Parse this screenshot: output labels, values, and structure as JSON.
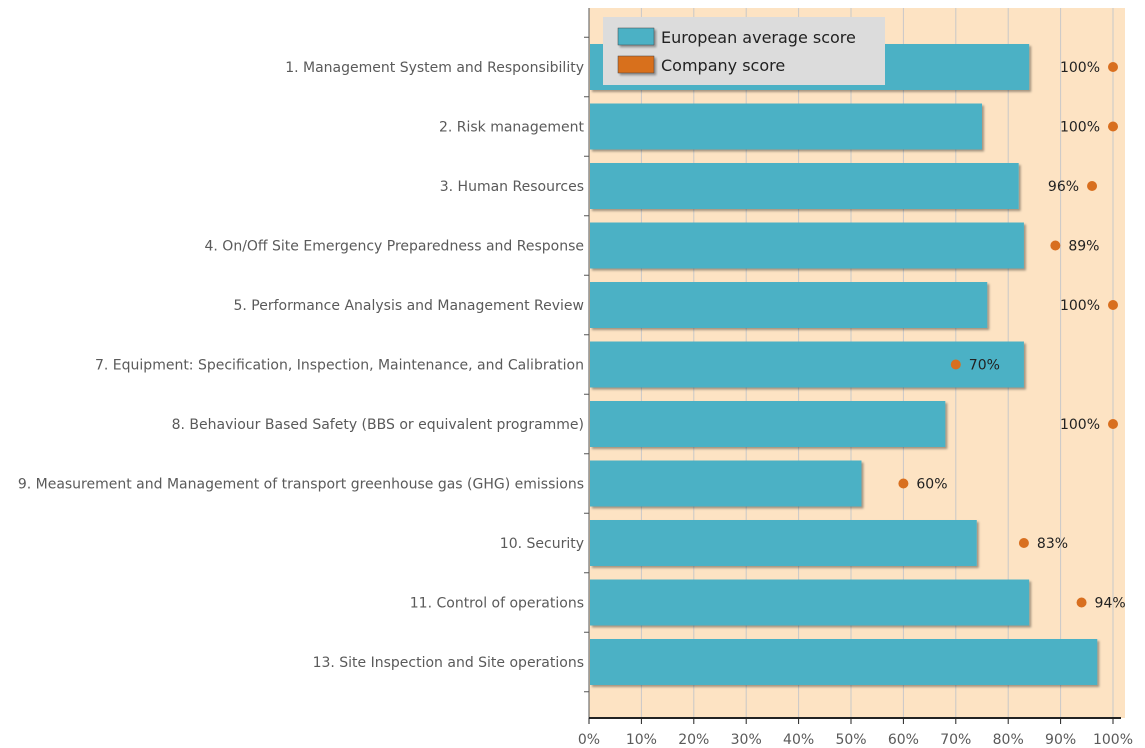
{
  "chart_data": {
    "type": "bar",
    "orientation": "horizontal",
    "categories": [
      "1. Management System and Responsibility",
      "2. Risk management",
      "3. Human Resources",
      "4. On/Off Site Emergency Preparedness and Response",
      "5. Performance Analysis and Management Review",
      "7. Equipment: Specification, Inspection, Maintenance, and Calibration",
      "8. Behaviour Based Safety (BBS or equivalent programme)",
      "9. Measurement and Management of transport greenhouse gas (GHG) emissions",
      "10. Security",
      "11. Control of operations",
      "13. Site Inspection and Site operations"
    ],
    "series": [
      {
        "name": "European average score",
        "type": "bar",
        "values": [
          84,
          75,
          82,
          83,
          76,
          83,
          68,
          52,
          74,
          84,
          97
        ]
      },
      {
        "name": "Company score",
        "type": "scatter",
        "values": [
          100,
          100,
          96,
          89,
          100,
          70,
          100,
          60,
          83,
          94,
          null
        ],
        "labels": [
          "100%",
          "100%",
          "96%",
          "89%",
          "100%",
          "70%",
          "100%",
          "60%",
          "83%",
          "94%",
          null
        ]
      }
    ],
    "xlim": [
      0,
      100
    ],
    "xticks": [
      "0%",
      "10%",
      "20%",
      "30%",
      "40%",
      "50%",
      "60%",
      "70%",
      "80%",
      "90%",
      "100%"
    ],
    "grid": "vertical",
    "legend_position": "top-left",
    "colors": {
      "bar": "#4bb1c5",
      "marker": "#d86f1f",
      "plot_background": "#fde3c3",
      "legend_background": "#dcdcdc",
      "grid": "#c8c8c8"
    }
  }
}
